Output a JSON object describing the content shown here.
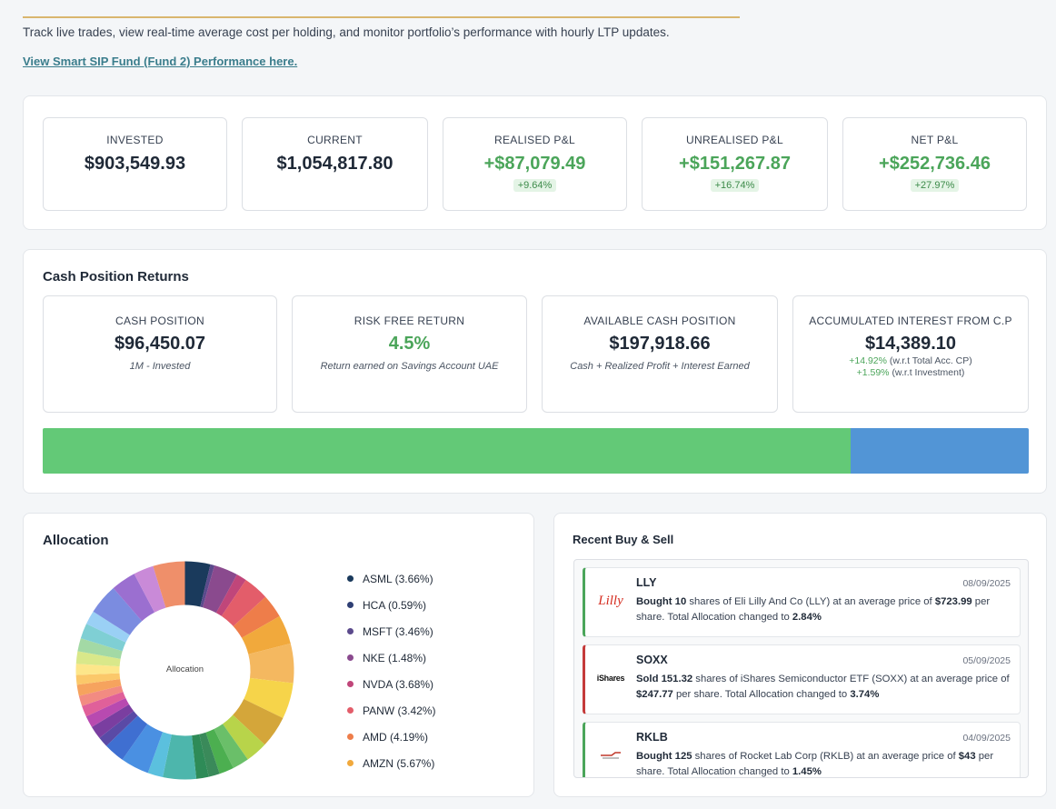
{
  "header": {
    "subtitle": "Track live trades, view real-time average cost per holding, and monitor portfolio’s performance with hourly LTP updates.",
    "link": "View Smart SIP Fund (Fund 2) Performance here."
  },
  "summary": [
    {
      "label": "INVESTED",
      "value": "$903,549.93"
    },
    {
      "label": "CURRENT",
      "value": "$1,054,817.80"
    },
    {
      "label": "REALISED P&L",
      "value": "+$87,079.49",
      "badge": "+9.64%"
    },
    {
      "label": "UNREALISED P&L",
      "value": "+$151,267.87",
      "badge": "+16.74%"
    },
    {
      "label": "NET P&L",
      "value": "+$252,736.46",
      "badge": "+27.97%"
    }
  ],
  "cash": {
    "title": "Cash Position Returns",
    "boxes": [
      {
        "label": "CASH POSITION",
        "value": "$96,450.07",
        "note": "1M - Invested"
      },
      {
        "label": "RISK FREE RETURN",
        "value": "4.5%",
        "note": "Return earned on Savings Account UAE"
      },
      {
        "label": "AVAILABLE CASH POSITION",
        "value": "$197,918.66",
        "note": "Cash + Realized Profit + Interest Earned"
      },
      {
        "label": "ACCUMULATED INTEREST FROM C.P",
        "value": "$14,389.10",
        "sub1_pct": "+14.92%",
        "sub1_text": "(w.r.t Total Acc. CP)",
        "sub2_pct": "+1.59%",
        "sub2_text": "(w.r.t Investment)"
      }
    ],
    "bar": {
      "share_a": 0.819,
      "color_a": "#63c977",
      "color_b": "#5295d6"
    }
  },
  "allocation": {
    "title": "Allocation",
    "center_label": "Allocation",
    "legend": [
      {
        "label": "ASML (3.66%)",
        "color": "#1a3a5c"
      },
      {
        "label": "HCA (0.59%)",
        "color": "#2f3f74"
      },
      {
        "label": "MSFT (3.46%)",
        "color": "#5b4a8c"
      },
      {
        "label": "NKE (1.48%)",
        "color": "#8a4a8e"
      },
      {
        "label": "NVDA (3.68%)",
        "color": "#c0467a"
      },
      {
        "label": "PANW (3.42%)",
        "color": "#e35d6a"
      },
      {
        "label": "AMD (4.19%)",
        "color": "#ee7d4a"
      },
      {
        "label": "AMZN (5.67%)",
        "color": "#f1a93c"
      }
    ]
  },
  "recent": {
    "title": "Recent Buy & Sell",
    "trades": [
      {
        "type": "buy",
        "symbol": "LLY",
        "date": "08/09/2025",
        "logo": "Lilly",
        "action": "Bought",
        "qty": "10",
        "text1": "shares of Eli Lilly And Co (LLY) at an average price of",
        "price": "$723.99",
        "text2": "per share. Total Allocation changed to",
        "alloc": "2.84%"
      },
      {
        "type": "sell",
        "symbol": "SOXX",
        "date": "05/09/2025",
        "logo": "iShares",
        "action": "Sold",
        "qty": "151.32",
        "text1": "shares of iShares Semiconductor ETF (SOXX) at an average price of",
        "price": "$247.77",
        "text2": "per share. Total Allocation changed to",
        "alloc": "3.74%"
      },
      {
        "type": "buy",
        "symbol": "RKLB",
        "date": "04/09/2025",
        "logo": "RL",
        "action": "Bought",
        "qty": "125",
        "text1": "shares of Rocket Lab Corp (RKLB) at an average price of",
        "price": "$43",
        "text2": "per share. Total Allocation changed to",
        "alloc": "1.45%"
      }
    ]
  }
}
